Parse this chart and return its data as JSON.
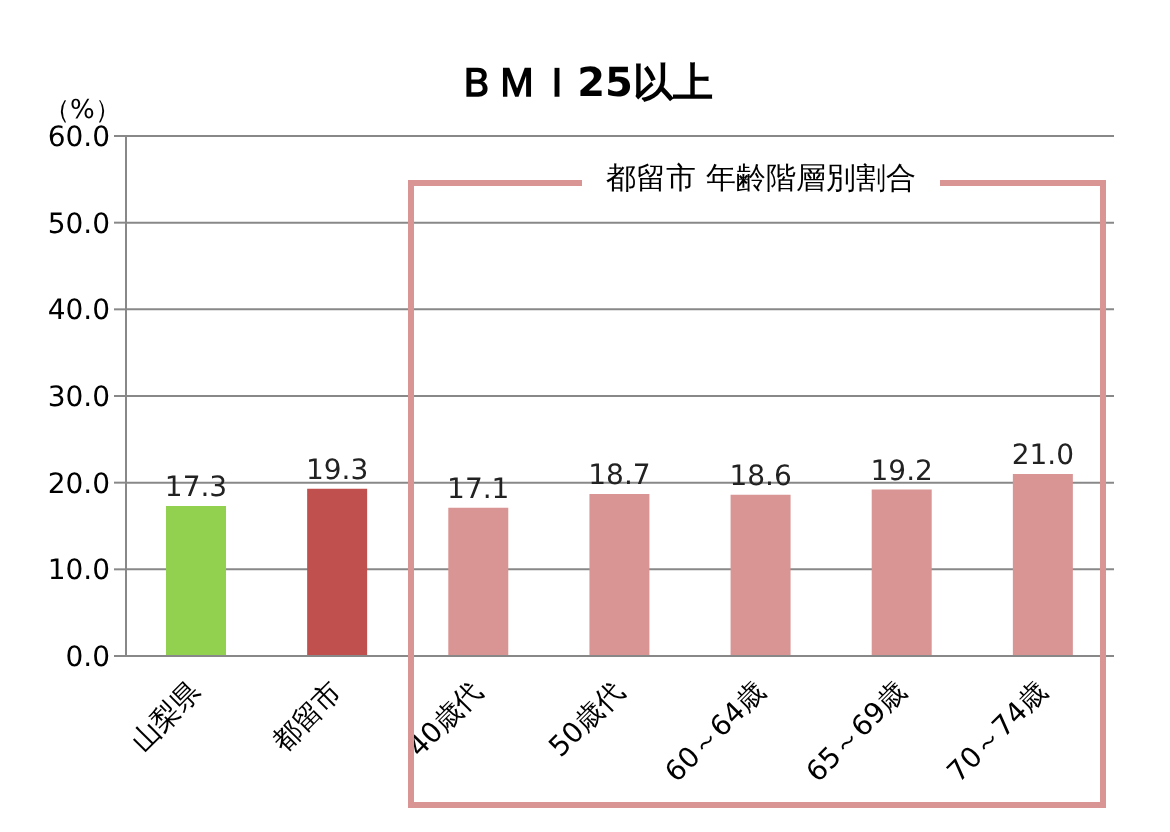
{
  "chart_data": {
    "type": "bar",
    "title": "ＢＭＩ25以上",
    "ylabel": "（%）",
    "categories": [
      "山梨県",
      "都留市",
      "40歳代",
      "50歳代",
      "60～64歳",
      "65～69歳",
      "70～74歳"
    ],
    "values": [
      17.3,
      19.3,
      17.1,
      18.7,
      18.6,
      19.2,
      21.0
    ],
    "colors": [
      "#92d050",
      "#c0504d",
      "#d99594",
      "#d99594",
      "#d99594",
      "#d99594",
      "#d99594"
    ],
    "ylim": [
      0,
      60
    ],
    "yticks": [
      {
        "value": 0,
        "label": "0.0"
      },
      {
        "value": 10,
        "label": "10.0"
      },
      {
        "value": 20,
        "label": "20.0"
      },
      {
        "value": 30,
        "label": "30.0"
      },
      {
        "value": 40,
        "label": "40.0"
      },
      {
        "value": 50,
        "label": "50.0"
      },
      {
        "value": 60,
        "label": "60.0"
      }
    ],
    "grid": "y",
    "value_labels": [
      "17.3",
      "19.3",
      "17.1",
      "18.7",
      "18.6",
      "19.2",
      "21.0"
    ],
    "annotations": [
      "都留市 年齢階層別割合"
    ]
  }
}
